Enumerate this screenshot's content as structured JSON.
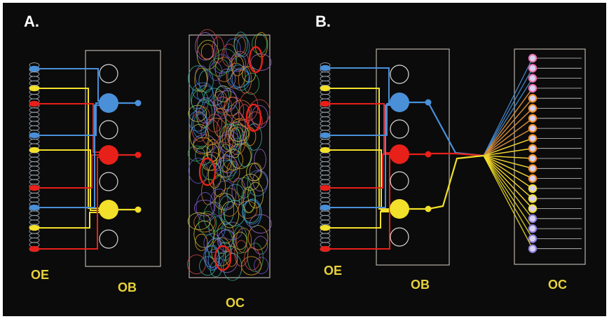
{
  "panel_a": {
    "letter": "A.",
    "labels": {
      "oe": "OE",
      "ob": "OB",
      "oc": "OC"
    }
  },
  "panel_b": {
    "letter": "B.",
    "labels": {
      "oe": "OE",
      "ob": "OB",
      "oc": "OC"
    }
  },
  "colors": {
    "background": "#0b0b0b",
    "blue": "#4a90d9",
    "red": "#e8201a",
    "yellow": "#f2e02a",
    "orange": "#f08a1c",
    "label": "#e8d23a",
    "box_outline": "#b8b0a8"
  }
}
